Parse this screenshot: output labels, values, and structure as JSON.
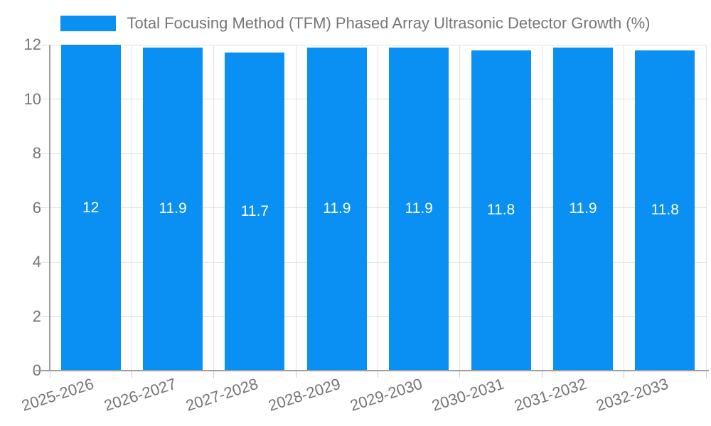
{
  "chart_data": {
    "type": "bar",
    "title": "Total Focusing Method (TFM) Phased Array Ultrasonic Detector Growth (%)",
    "categories": [
      "2025-2026",
      "2026-2027",
      "2027-2028",
      "2028-2029",
      "2029-2030",
      "2030-2031",
      "2031-2032",
      "2032-2033"
    ],
    "values": [
      12,
      11.9,
      11.7,
      11.9,
      11.9,
      11.8,
      11.9,
      11.8
    ],
    "value_labels": [
      "12",
      "11.9",
      "11.7",
      "11.9",
      "11.9",
      "11.8",
      "11.9",
      "11.8"
    ],
    "xlabel": "",
    "ylabel": "",
    "ylim": [
      0,
      12
    ],
    "yticks": [
      0,
      2,
      4,
      6,
      8,
      10,
      12
    ],
    "grid": true,
    "legend_position": "top-center",
    "colors": {
      "bar": "#0a90f3",
      "value_label": "#ffffff",
      "axis_text": "#757575",
      "gridline": "#e2e2e2",
      "axis_line": "#9e9e9e",
      "tick": "#cccccc",
      "background": "#ffffff"
    }
  }
}
